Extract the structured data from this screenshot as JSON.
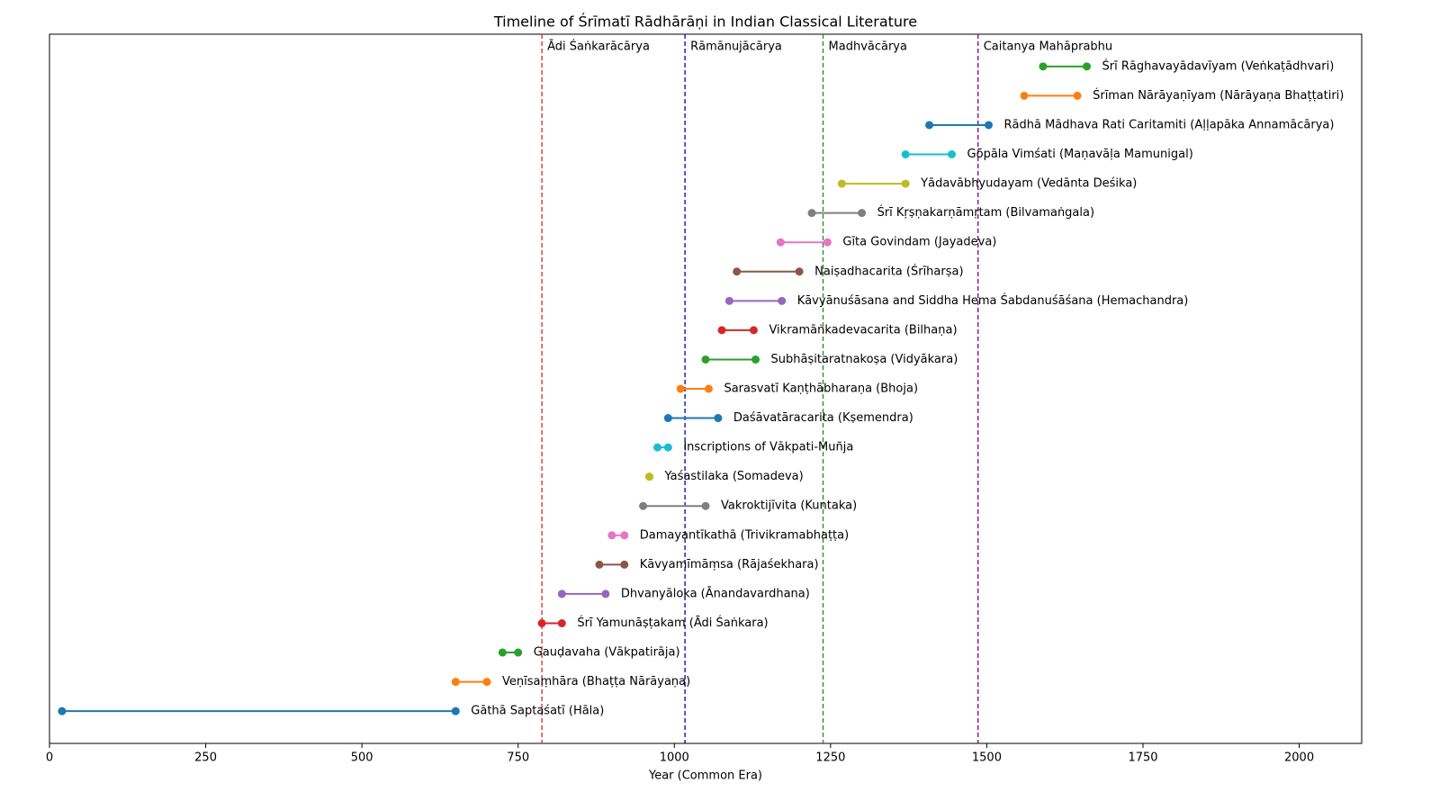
{
  "chart_data": {
    "type": "range",
    "title": "Timeline of Śrīmatī Rādhārāṇi in Indian Classical Literature",
    "xlabel": "Year (Common Era)",
    "xlim": [
      0,
      2100
    ],
    "xticks": [
      0,
      250,
      500,
      750,
      1000,
      1250,
      1500,
      1750,
      2000
    ],
    "categories": [
      "Gāthā Saptaśatī (Hāla)",
      "Veṇīsaṃhāra (Bhaṭṭa Nārāyaṇa)",
      "Gauḍavaha (Vākpatirāja)",
      "Śrī Yamunāṣṭakam (Ādi Śaṅkara)",
      "Dhvanyāloka (Ānandavardhana)",
      "Kāvyamīmāṃsa (Rājaśekhara)",
      "Damayantīkathā (Trivikramabhaṭṭa)",
      "Vakroktijīvita (Kuntaka)",
      "Yaśastilaka (Somadeva)",
      "Inscriptions of Vākpati-Muñja",
      "Daśāvatāracarita (Kṣemendra)",
      "Sarasvatī Kaṇṭhābharaṇa (Bhoja)",
      "Subhāṣitaratnakoṣa (Vidyākara)",
      "Vikramāṅkadevacarita (Bilhaṇa)",
      "Kāvyānuśāsana and Siddha Hema Śabdanuśāśana (Hemachandra)",
      "Naiṣadhacarita (Śrīharṣa)",
      "Gīta Govindam (Jayadeva)",
      "Śrī Kṛṣṇakarṇāmṛtam (Bilvamaṅgala)",
      "Yādavābhyudayam (Vedānta Deśika)",
      "Gōpāla Vimśati (Maṇavāḷa Mamunigal)",
      "Rādhā Mādhava Rati Caritamiti (Aḷḷapāka Annamācārya)",
      "Śrīman Nārāyaṇīyam (Nārāyaṇa Bhaṭṭatiri)",
      "Śrī Rāghavayādavīyam (Veṅkaṭādhvari)"
    ],
    "start": [
      20,
      650,
      725,
      788,
      820,
      880,
      900,
      950,
      960,
      973,
      990,
      1010,
      1050,
      1076,
      1088,
      1100,
      1170,
      1220,
      1268,
      1370,
      1408,
      1560,
      1590
    ],
    "end": [
      650,
      700,
      750,
      820,
      890,
      920,
      920,
      1050,
      960,
      990,
      1070,
      1055,
      1130,
      1127,
      1172,
      1200,
      1245,
      1300,
      1370,
      1444,
      1503,
      1645,
      1660
    ],
    "colors": [
      "#1f77b4",
      "#ff7f0e",
      "#2ca02c",
      "#d62728",
      "#9467bd",
      "#8c564b",
      "#e377c2",
      "#7f7f7f",
      "#bcbd22",
      "#17becf",
      "#1f77b4",
      "#ff7f0e",
      "#2ca02c",
      "#d62728",
      "#9467bd",
      "#8c564b",
      "#e377c2",
      "#7f7f7f",
      "#bcbd22",
      "#17becf",
      "#1f77b4",
      "#ff7f0e",
      "#2ca02c"
    ],
    "markers": [
      {
        "label": "Ādi Śaṅkarācārya",
        "value": 788,
        "color": "#d62728"
      },
      {
        "label": "Rāmānujācārya",
        "value": 1017,
        "color": "#0000aa"
      },
      {
        "label": "Madhvācārya",
        "value": 1238,
        "color": "#228b22"
      },
      {
        "label": "Caitanya Mahāprabhu",
        "value": 1486,
        "color": "#800080"
      }
    ]
  }
}
